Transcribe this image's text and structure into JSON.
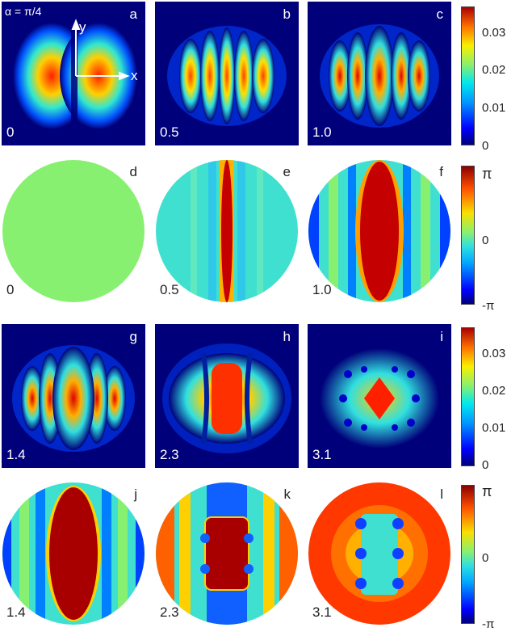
{
  "figure": {
    "annotation": "α = π/4",
    "axis_x": "x",
    "axis_y": "y",
    "panels": [
      {
        "letter": "a",
        "value": "0",
        "kind": "amp"
      },
      {
        "letter": "b",
        "value": "0.5",
        "kind": "amp"
      },
      {
        "letter": "c",
        "value": "1.0",
        "kind": "amp"
      },
      {
        "letter": "d",
        "value": "0",
        "kind": "phase"
      },
      {
        "letter": "e",
        "value": "0.5",
        "kind": "phase"
      },
      {
        "letter": "f",
        "value": "1.0",
        "kind": "phase"
      },
      {
        "letter": "g",
        "value": "1.4",
        "kind": "amp"
      },
      {
        "letter": "h",
        "value": "2.3",
        "kind": "amp"
      },
      {
        "letter": "i",
        "value": "3.1",
        "kind": "amp"
      },
      {
        "letter": "j",
        "value": "1.4",
        "kind": "phase"
      },
      {
        "letter": "k",
        "value": "2.3",
        "kind": "phase"
      },
      {
        "letter": "l",
        "value": "3.1",
        "kind": "phase"
      }
    ],
    "colorbars": {
      "amplitude": {
        "ticks": [
          "0.03",
          "0.02",
          "0.01",
          "0"
        ],
        "range": [
          0,
          0.036
        ]
      },
      "phase": {
        "ticks": [
          "π",
          "0",
          "-π"
        ]
      }
    },
    "colors": {
      "background_amp": "#00007a",
      "phase_uniform": "#88f070",
      "cyan": "#30e0e0",
      "red": "#c40000"
    }
  }
}
